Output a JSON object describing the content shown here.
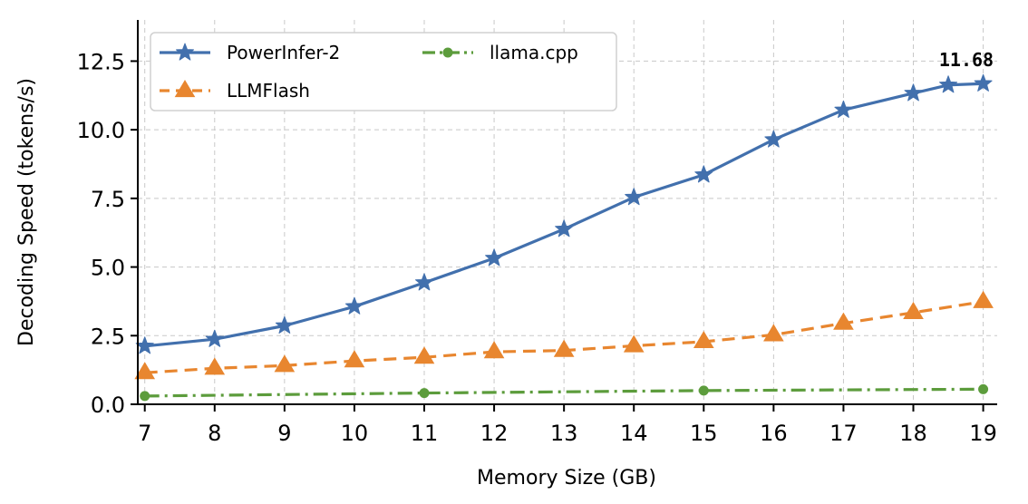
{
  "chart_data": {
    "type": "line",
    "title": "",
    "xlabel": "Memory Size (GB)",
    "ylabel": "Decoding Speed (tokens/s)",
    "x": [
      7,
      8,
      9,
      10,
      11,
      12,
      13,
      14,
      15,
      16,
      17,
      18,
      19
    ],
    "xlim": [
      6.9,
      19.2
    ],
    "ylim": [
      0,
      14
    ],
    "yticks": [
      0.0,
      2.5,
      5.0,
      7.5,
      10.0,
      12.5
    ],
    "ytick_labels": [
      "0.0",
      "2.5",
      "5.0",
      "7.5",
      "10.0",
      "12.5"
    ],
    "xtick_labels": [
      "7",
      "8",
      "9",
      "10",
      "11",
      "12",
      "13",
      "14",
      "15",
      "16",
      "17",
      "18",
      "19"
    ],
    "grid": true,
    "legend_position": "top-left",
    "series": [
      {
        "name": "PowerInfer-2",
        "color": "#4270ad",
        "marker": "star",
        "linestyle": "solid",
        "x": [
          7,
          8,
          9,
          10,
          11,
          12,
          13,
          14,
          15,
          16,
          17,
          18,
          18.5,
          19
        ],
        "values": [
          2.12,
          2.37,
          2.86,
          3.56,
          4.43,
          5.32,
          6.38,
          7.54,
          8.36,
          9.64,
          10.72,
          11.33,
          11.63,
          11.68
        ]
      },
      {
        "name": "LLMFlash",
        "color": "#e8862f",
        "marker": "triangle",
        "linestyle": "dashed",
        "x": [
          7,
          8,
          9,
          10,
          11,
          12,
          13,
          14,
          15,
          16,
          17,
          18,
          19
        ],
        "values": [
          1.15,
          1.31,
          1.41,
          1.58,
          1.71,
          1.91,
          1.96,
          2.13,
          2.28,
          2.53,
          2.95,
          3.34,
          3.74
        ]
      },
      {
        "name": "llama.cpp",
        "color": "#5c9c3c",
        "marker": "circle",
        "linestyle": "dashdot",
        "x": [
          7,
          11,
          15,
          19
        ],
        "values": [
          0.3,
          0.41,
          0.5,
          0.55
        ]
      }
    ],
    "annotations": [
      {
        "text": "11.68",
        "x": 19,
        "y": 11.68
      }
    ]
  }
}
